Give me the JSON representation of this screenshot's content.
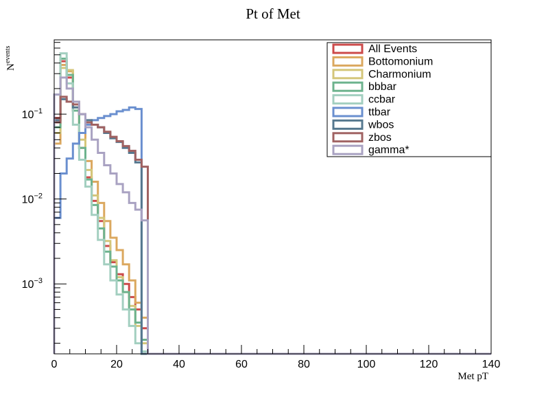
{
  "chart_data": {
    "type": "histogram-step",
    "title": "Pt of Met",
    "xlabel": "Met pT",
    "ylabel_main": "N",
    "ylabel_sub": "events",
    "xlim": [
      0,
      140
    ],
    "ylim": [
      0.00015,
      0.75
    ],
    "yscale": "log",
    "grid": false,
    "legend_position": "top-right",
    "x_ticks": [
      {
        "value": 0,
        "label": "0"
      },
      {
        "value": 20,
        "label": "20"
      },
      {
        "value": 40,
        "label": "40"
      },
      {
        "value": 60,
        "label": "60"
      },
      {
        "value": 80,
        "label": "80"
      },
      {
        "value": 100,
        "label": "100"
      },
      {
        "value": 120,
        "label": "120"
      },
      {
        "value": 140,
        "label": "140"
      }
    ],
    "y_ticks": [
      {
        "value": 0.1,
        "base": "10",
        "exp": "−1"
      },
      {
        "value": 0.01,
        "base": "10",
        "exp": "−2"
      },
      {
        "value": 0.001,
        "base": "10",
        "exp": "−3"
      }
    ],
    "bin_edges": [
      0,
      2,
      4,
      6,
      8,
      10,
      12,
      14,
      16,
      18,
      20,
      22,
      24,
      26,
      28,
      30
    ],
    "series": [
      {
        "name": "All Events",
        "color": "#cc4a4a",
        "values": [
          0.09,
          0.42,
          0.27,
          0.11,
          0.04,
          0.018,
          0.0095,
          0.0055,
          0.0028,
          0.0018,
          0.0013,
          0.001,
          0.0007,
          0.0005,
          0.0003
        ]
      },
      {
        "name": "Bottomonium",
        "color": "#dba85f",
        "values": [
          0.045,
          0.38,
          0.32,
          0.14,
          0.06,
          0.028,
          0.016,
          0.009,
          0.0055,
          0.0035,
          0.0025,
          0.0017,
          0.0011,
          0.0006,
          0.0004
        ]
      },
      {
        "name": "Charmonium",
        "color": "#d4c67a",
        "values": [
          0.06,
          0.35,
          0.33,
          0.12,
          0.05,
          0.022,
          0.011,
          0.006,
          0.0032,
          0.0019,
          0.0012,
          0.0008,
          0.00055,
          0.00032,
          0.0002
        ]
      },
      {
        "name": "bbbar",
        "color": "#6db38e",
        "values": [
          0.07,
          0.45,
          0.29,
          0.11,
          0.04,
          0.017,
          0.0085,
          0.0045,
          0.0024,
          0.0016,
          0.0011,
          0.0008,
          0.0005,
          0.00035,
          0.00022
        ]
      },
      {
        "name": "ccbar",
        "color": "#a3cfc0",
        "values": [
          0.17,
          0.52,
          0.23,
          0.075,
          0.029,
          0.014,
          0.0065,
          0.0033,
          0.0017,
          0.0011,
          0.00075,
          0.0005,
          0.00032,
          0.0002,
          0.00016
        ]
      },
      {
        "name": "ttbar",
        "color": "#6a8fcf",
        "values": [
          0.006,
          0.02,
          0.03,
          0.045,
          0.06,
          0.075,
          0.085,
          0.09,
          0.095,
          0.1,
          0.108,
          0.112,
          0.12,
          0.115,
          0.0
        ]
      },
      {
        "name": "wbos",
        "color": "#56788f",
        "values": [
          0.085,
          0.15,
          0.14,
          0.12,
          0.1,
          0.085,
          0.075,
          0.07,
          0.06,
          0.052,
          0.047,
          0.04,
          0.035,
          0.027,
          0.0
        ]
      },
      {
        "name": "zbos",
        "color": "#a06262",
        "values": [
          0.08,
          0.16,
          0.14,
          0.13,
          0.1,
          0.08,
          0.075,
          0.07,
          0.062,
          0.054,
          0.048,
          0.042,
          0.037,
          0.029,
          0.024
        ]
      },
      {
        "name": "gamma*",
        "color": "#a9a2c2",
        "values": [
          0.17,
          0.27,
          0.2,
          0.14,
          0.1,
          0.07,
          0.05,
          0.035,
          0.025,
          0.02,
          0.015,
          0.012,
          0.009,
          0.0075,
          0.0056
        ]
      }
    ]
  }
}
